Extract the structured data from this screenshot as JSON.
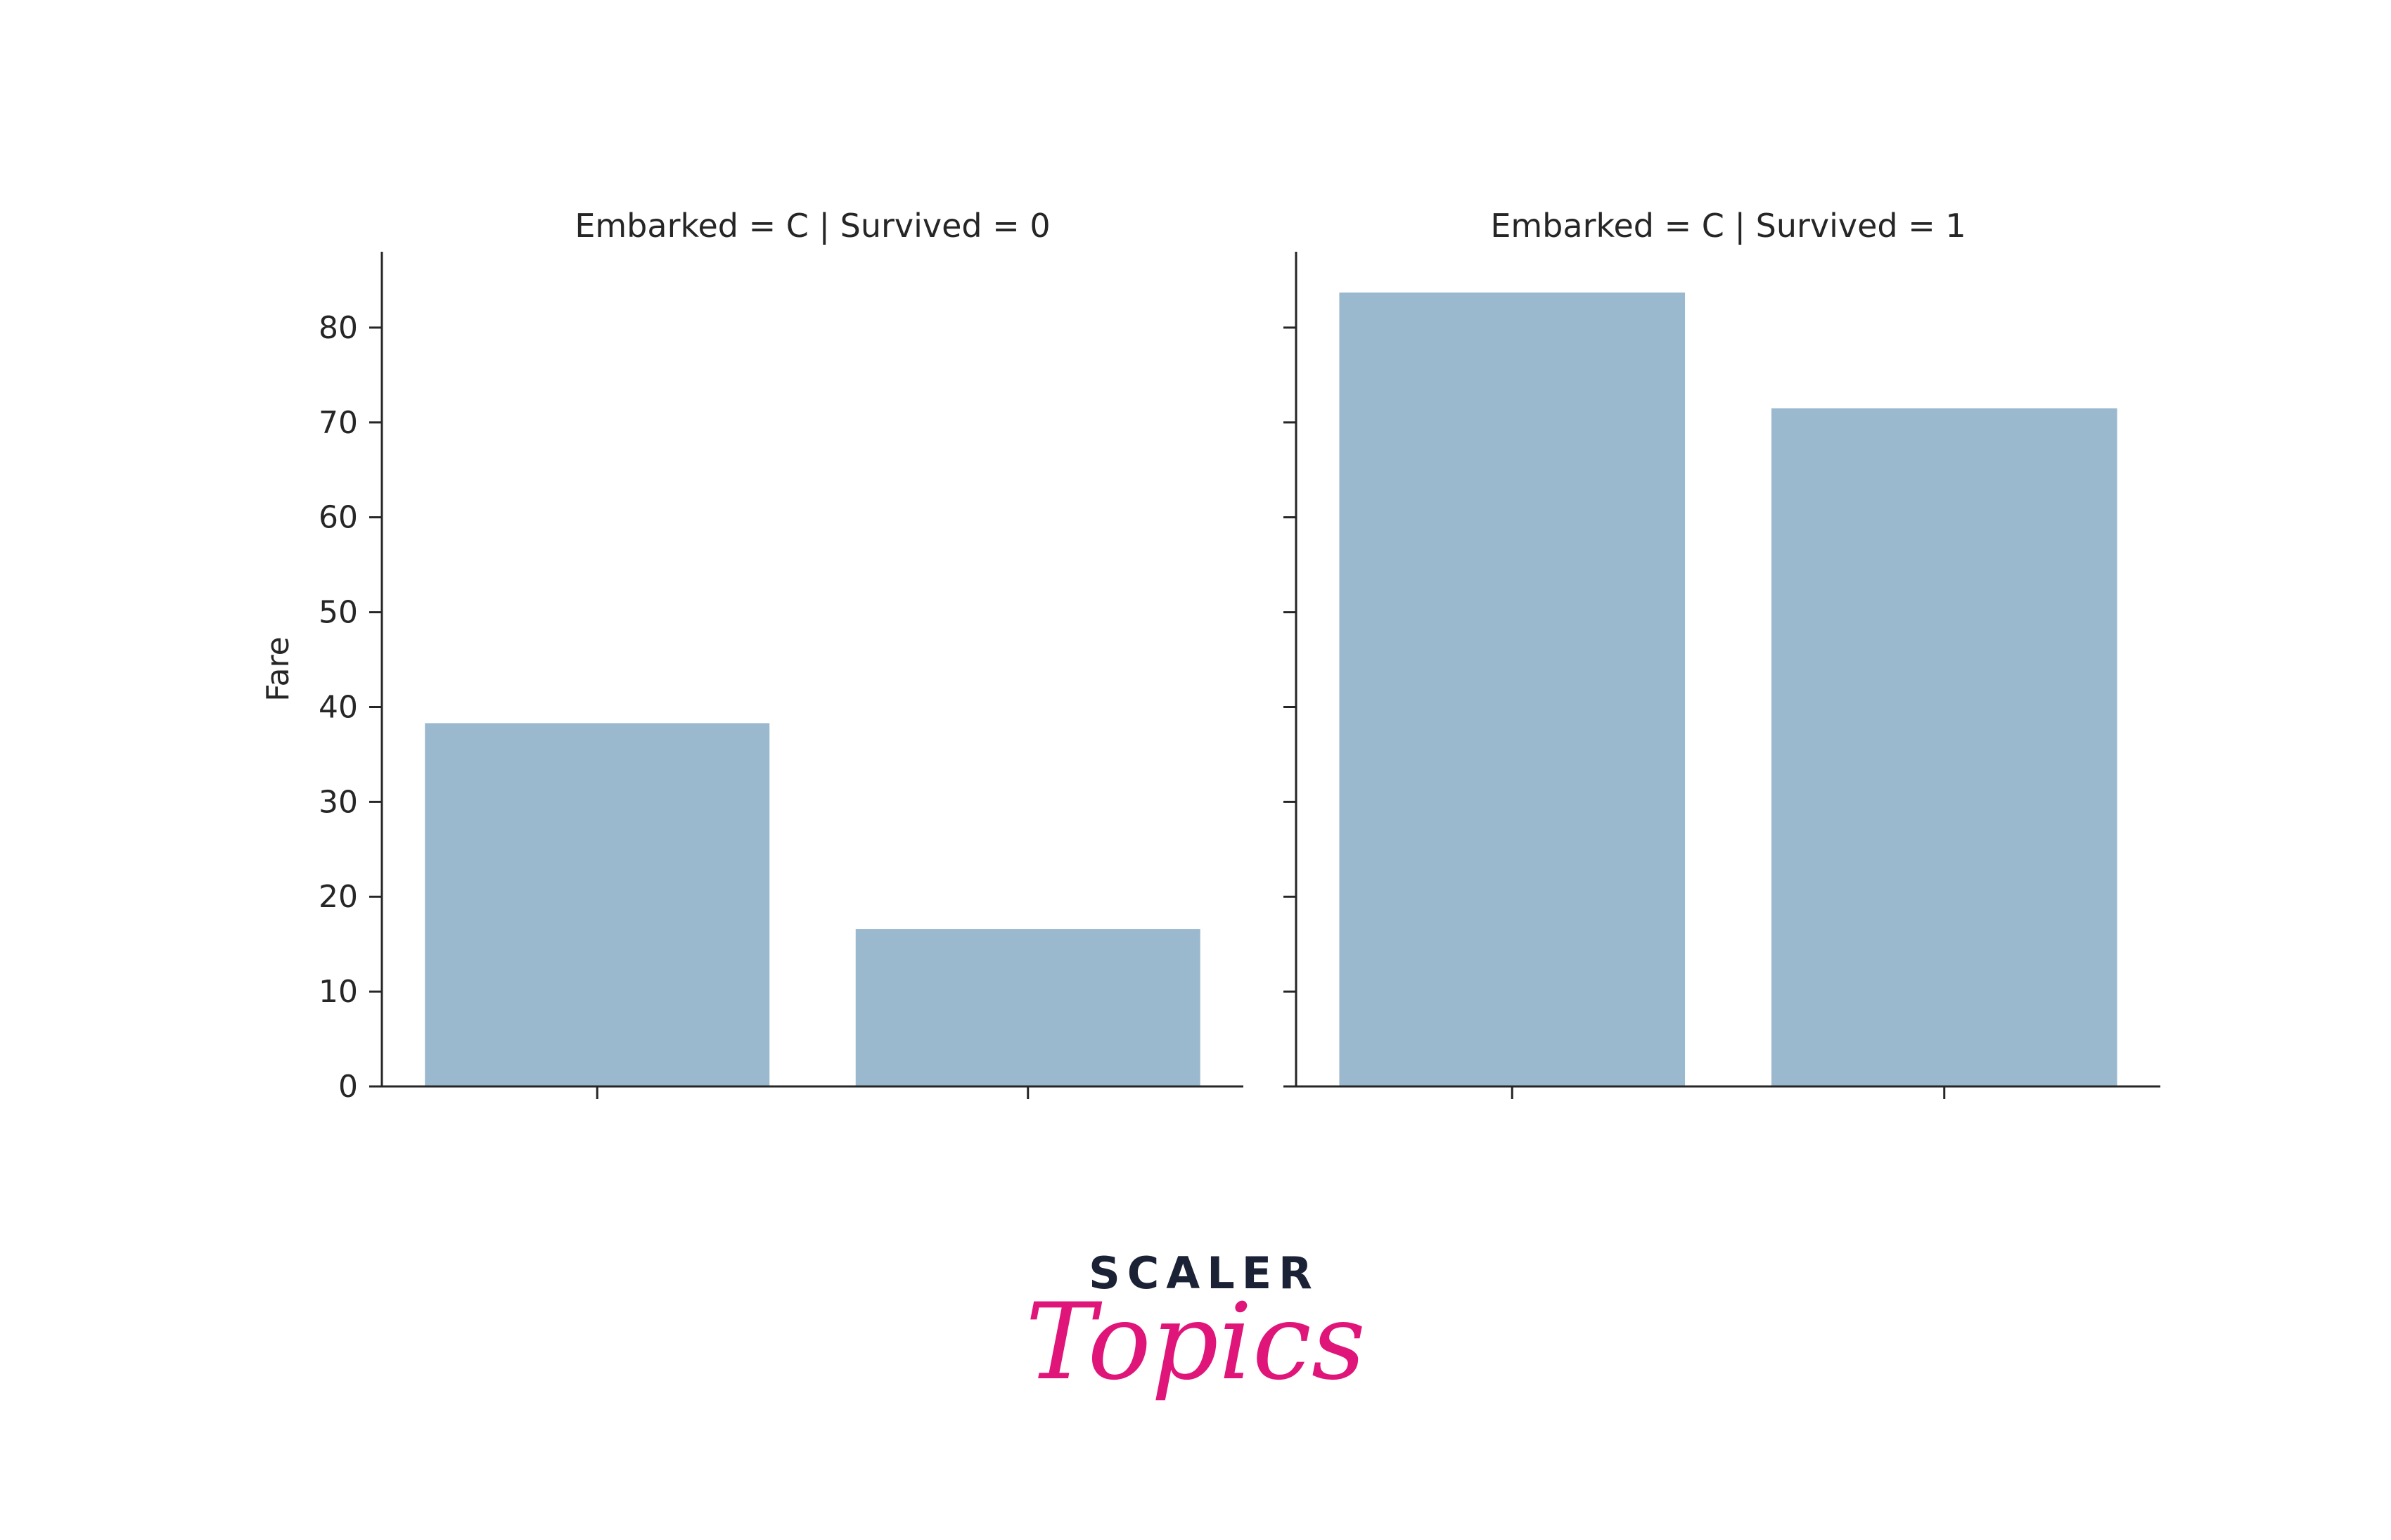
{
  "chart_data": [
    {
      "type": "bar",
      "title": "Embarked = C | Survived = 0",
      "ylabel": "Fare",
      "xlabel": "",
      "ylim": [
        0,
        88
      ],
      "yticks": [
        0,
        10,
        20,
        30,
        40,
        50,
        60,
        70,
        80
      ],
      "show_ytick_labels": true,
      "categories": [
        "",
        ""
      ],
      "values": [
        38.3,
        16.6
      ],
      "bar_color": "#9ab9cf",
      "grid": false,
      "legend": "none"
    },
    {
      "type": "bar",
      "title": "Embarked = C | Survived = 1",
      "ylabel": "",
      "xlabel": "",
      "ylim": [
        0,
        88
      ],
      "yticks": [
        0,
        10,
        20,
        30,
        40,
        50,
        60,
        70,
        80
      ],
      "show_ytick_labels": false,
      "categories": [
        "",
        ""
      ],
      "values": [
        83.7,
        71.5
      ],
      "bar_color": "#9ab9cf",
      "grid": false,
      "legend": "none"
    }
  ],
  "brand": {
    "line1": "SCALER",
    "line2": "Topics",
    "line1_color": "#1b2235",
    "line2_color": "#e0157a"
  },
  "colors": {
    "axis": "#262626",
    "background": "#ffffff"
  }
}
